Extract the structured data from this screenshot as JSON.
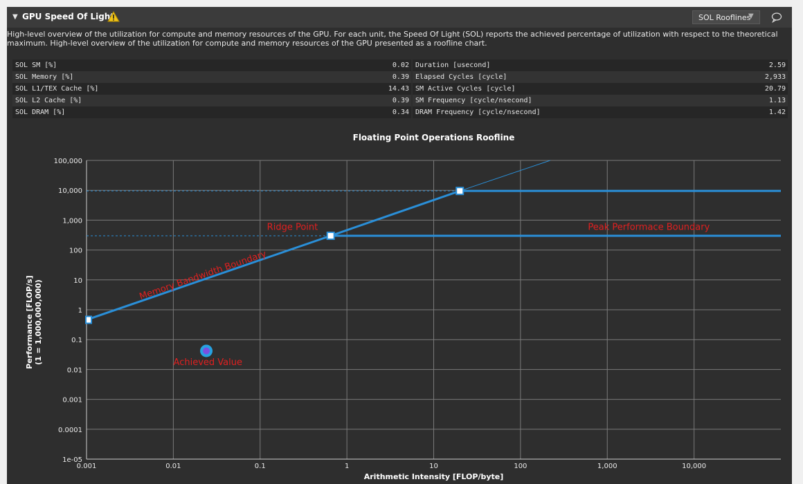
{
  "section": {
    "title": "GPU Speed Of Light",
    "warning_icon": "warning-icon",
    "dropdown_value": "SOL Rooflines",
    "comment_icon": "comment-icon",
    "description": "High-level overview of the utilization for compute and memory resources of the GPU. For each unit, the Speed Of Light (SOL) reports the achieved percentage of utilization with respect to the theoretical maximum. High-level overview of the utilization for compute and memory resources of the GPU presented as a roofline chart."
  },
  "metrics": [
    {
      "label": "SOL SM [%]",
      "value": "0.02",
      "label2": "Duration [usecond]",
      "value2": "2.59"
    },
    {
      "label": "SOL Memory [%]",
      "value": "0.39",
      "label2": "Elapsed Cycles [cycle]",
      "value2": "2,933"
    },
    {
      "label": "SOL L1/TEX Cache [%]",
      "value": "14.43",
      "label2": "SM Active Cycles [cycle]",
      "value2": "20.79"
    },
    {
      "label": "SOL L2 Cache [%]",
      "value": "0.39",
      "label2": "SM Frequency [cycle/nsecond]",
      "value2": "1.13"
    },
    {
      "label": "SOL DRAM [%]",
      "value": "0.34",
      "label2": "DRAM Frequency [cycle/nsecond]",
      "value2": "1.42"
    }
  ],
  "chart_data": {
    "type": "line",
    "title": "Floating Point Operations Roofline",
    "xlabel": "Arithmetic Intensity [FLOP/byte]",
    "ylabel": "Performance [FLOP/s]",
    "ylabel2": "(1 = 1,000,000,000)",
    "x_scale": "log",
    "y_scale": "log",
    "xlim": [
      0.001,
      100000
    ],
    "ylim": [
      1e-05,
      100000
    ],
    "x_ticks": [
      {
        "v": 0.001,
        "label": "0.001"
      },
      {
        "v": 0.01,
        "label": "0.01"
      },
      {
        "v": 0.1,
        "label": "0.1"
      },
      {
        "v": 1,
        "label": "1"
      },
      {
        "v": 10,
        "label": "10"
      },
      {
        "v": 100,
        "label": "100"
      },
      {
        "v": 1000,
        "label": "1,000"
      },
      {
        "v": 10000,
        "label": "10,000"
      }
    ],
    "y_ticks": [
      {
        "v": 1e-05,
        "label": "1e-05"
      },
      {
        "v": 0.0001,
        "label": "0.0001"
      },
      {
        "v": 0.001,
        "label": "0.001"
      },
      {
        "v": 0.01,
        "label": "0.01"
      },
      {
        "v": 0.1,
        "label": "0.1"
      },
      {
        "v": 1,
        "label": "1"
      },
      {
        "v": 10,
        "label": "10"
      },
      {
        "v": 100,
        "label": "100"
      },
      {
        "v": 1000,
        "label": "1,000"
      },
      {
        "v": 10000,
        "label": "10,000"
      },
      {
        "v": 100000,
        "label": "100,000"
      }
    ],
    "grid": true,
    "line_color": "#2a8fd8",
    "annotation_color": "#e02020",
    "rooflines": [
      {
        "bandwidth_x": [
          0.001,
          0.65
        ],
        "bandwidth_y": [
          0.46,
          300
        ],
        "peak_y": 300
      },
      {
        "bandwidth_x": [
          0.65,
          20
        ],
        "bandwidth_y": [
          300,
          9500
        ],
        "peak_y": 9500
      }
    ],
    "bandwidth_extension": {
      "x": [
        20,
        220
      ],
      "y": [
        9500,
        100000
      ]
    },
    "ridge_points": [
      {
        "x": 0.65,
        "y": 300
      },
      {
        "x": 20,
        "y": 9500
      }
    ],
    "start_point": {
      "x": 0.001,
      "y": 0.46
    },
    "achieved": {
      "x": 0.024,
      "y": 0.042,
      "fill": "#7a4fe0",
      "ring": "#27a1e0"
    },
    "annotations": [
      {
        "text": "Memory Bandwidth Boundary",
        "x": 0.0042,
        "y": 2.2
      },
      {
        "text": "Ridge Point",
        "x": 0.12,
        "y": 470
      },
      {
        "text": "Peak Performace Boundary",
        "x": 600,
        "y": 470
      },
      {
        "text": "Achieved Value",
        "x": 0.025,
        "y": 0.014
      }
    ]
  }
}
